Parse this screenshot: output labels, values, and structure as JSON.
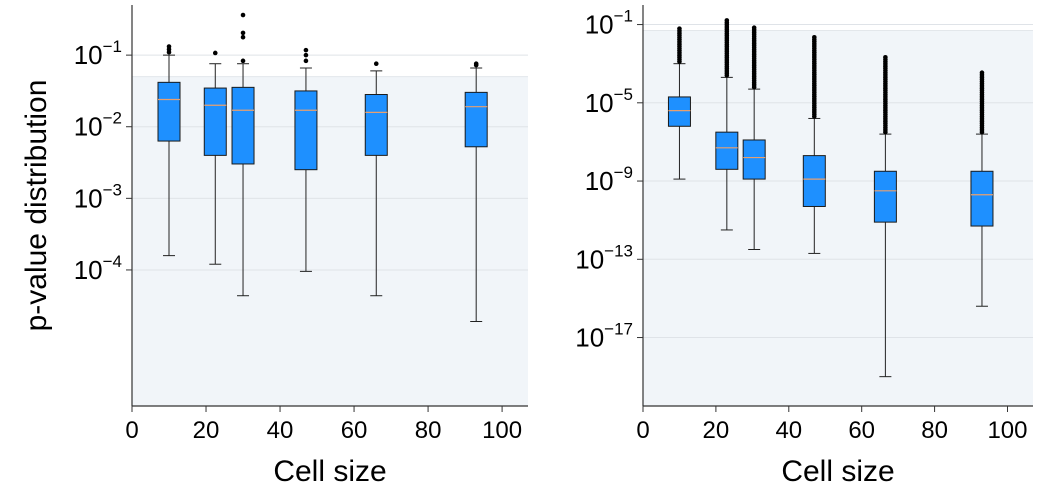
{
  "chart_data": [
    {
      "type": "box",
      "panel": "left",
      "xlabel": "Cell size",
      "ylabel": "p-value distribution",
      "xlim": [
        0,
        107
      ],
      "ylim_log10": [
        -5.9,
        -0.3
      ],
      "y_scale": "log",
      "grid": true,
      "xticks": [
        "0",
        "20",
        "40",
        "60",
        "80",
        "100"
      ],
      "xtick_values": [
        0,
        20,
        40,
        60,
        80,
        100
      ],
      "yticks": [
        {
          "base": "10",
          "exp": "−1"
        },
        {
          "base": "10",
          "exp": "−2"
        },
        {
          "base": "10",
          "exp": "−3"
        },
        {
          "base": "10",
          "exp": "−4"
        }
      ],
      "ytick_log10": [
        -1,
        -2,
        -3,
        -4
      ],
      "significance_threshold": 0.05,
      "colors": {
        "box": "#1e90ff",
        "median": "#e8a070",
        "shade": "#f1f5f9",
        "grid": "#dfe3e8"
      },
      "boxes": [
        {
          "x": 10,
          "q1": -2.2,
          "median": -1.62,
          "q3": -1.38,
          "lo": -3.8,
          "hi": -1.0,
          "outliers": [
            -0.88,
            -0.92,
            -0.96
          ]
        },
        {
          "x": 22.5,
          "q1": -2.4,
          "median": -1.7,
          "q3": -1.46,
          "lo": -3.92,
          "hi": -1.12,
          "outliers": [
            -0.97
          ]
        },
        {
          "x": 30,
          "q1": -2.52,
          "median": -1.77,
          "q3": -1.45,
          "lo": -4.36,
          "hi": -1.12,
          "outliers": [
            -0.44,
            -0.69,
            -0.75,
            -1.08
          ]
        },
        {
          "x": 47,
          "q1": -2.6,
          "median": -1.77,
          "q3": -1.5,
          "lo": -4.02,
          "hi": -1.18,
          "outliers": [
            -0.93,
            -1.0,
            -1.08
          ]
        },
        {
          "x": 66,
          "q1": -2.4,
          "median": -1.8,
          "q3": -1.55,
          "lo": -4.36,
          "hi": -1.22,
          "outliers": [
            -1.12
          ]
        },
        {
          "x": 93,
          "q1": -2.28,
          "median": -1.72,
          "q3": -1.52,
          "lo": -4.72,
          "hi": -1.18,
          "outliers": [
            -1.12,
            -1.14
          ]
        }
      ]
    },
    {
      "type": "box",
      "panel": "right",
      "xlabel": "Cell size",
      "ylabel": "",
      "xlim": [
        0,
        107
      ],
      "ylim_log10": [
        -20.5,
        0
      ],
      "y_scale": "log",
      "grid": true,
      "xticks": [
        "0",
        "20",
        "40",
        "60",
        "80",
        "100"
      ],
      "xtick_values": [
        0,
        20,
        40,
        60,
        80,
        100
      ],
      "yticks": [
        {
          "base": "10",
          "exp": "−1"
        },
        {
          "base": "10",
          "exp": "−5"
        },
        {
          "base": "10",
          "exp": "−9"
        },
        {
          "base": "10",
          "exp": "−13"
        },
        {
          "base": "10",
          "exp": "−17"
        }
      ],
      "ytick_log10": [
        -1,
        -5,
        -9,
        -13,
        -17
      ],
      "significance_threshold": 0.05,
      "colors": {
        "box": "#1e90ff",
        "median": "#e8a070",
        "shade": "#f1f5f9",
        "grid": "#dfe3e8"
      },
      "boxes": [
        {
          "x": 10,
          "q1": -6.2,
          "median": -5.4,
          "q3": -4.7,
          "lo": -8.9,
          "hi": -3.0,
          "flier_top": -1.2
        },
        {
          "x": 23,
          "q1": -8.4,
          "median": -7.3,
          "q3": -6.5,
          "lo": -11.5,
          "hi": -3.7,
          "flier_top": -0.75
        },
        {
          "x": 30.5,
          "q1": -8.9,
          "median": -7.8,
          "q3": -6.9,
          "lo": -12.5,
          "hi": -4.3,
          "flier_top": -1.1
        },
        {
          "x": 47,
          "q1": -10.3,
          "median": -8.9,
          "q3": -7.7,
          "lo": -12.7,
          "hi": -5.8,
          "flier_top": -1.6
        },
        {
          "x": 66.5,
          "q1": -11.1,
          "median": -9.5,
          "q3": -8.5,
          "lo": -19.0,
          "hi": -6.6,
          "flier_top": -2.6
        },
        {
          "x": 93,
          "q1": -11.3,
          "median": -9.7,
          "q3": -8.5,
          "lo": -15.4,
          "hi": -6.6,
          "flier_top": -3.4
        }
      ]
    }
  ]
}
